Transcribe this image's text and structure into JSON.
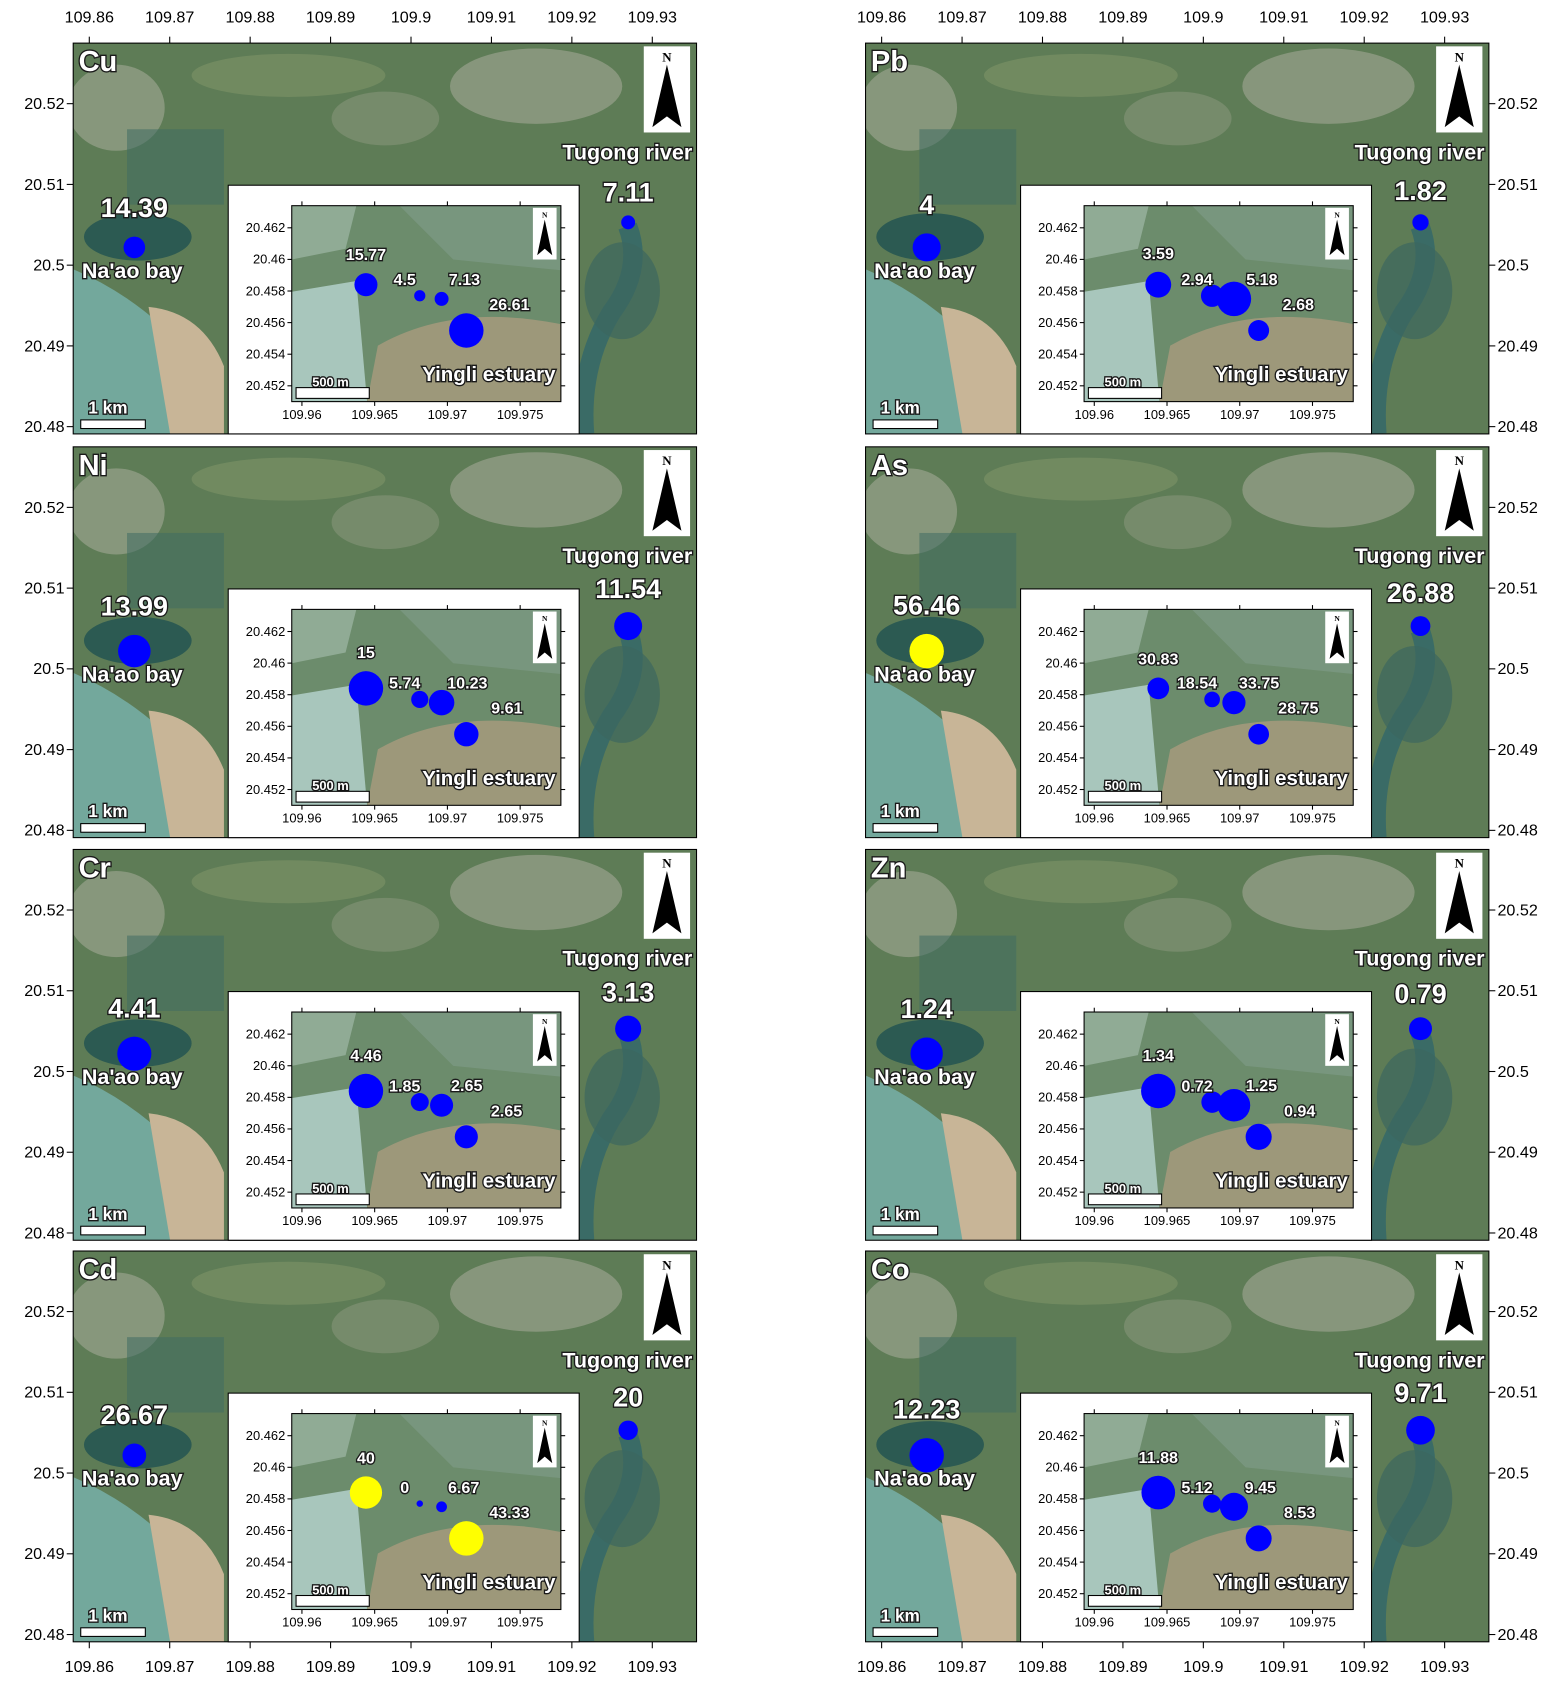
{
  "map": {
    "xlim": [
      109.858,
      109.9355
    ],
    "ylim": [
      20.4791,
      20.5275
    ],
    "xticks": [
      109.86,
      109.87,
      109.88,
      109.89,
      109.9,
      109.91,
      109.92,
      109.93
    ],
    "yticks": [
      20.48,
      20.49,
      20.5,
      20.51,
      20.52
    ],
    "sites": [
      {
        "label": "Na'ao bay",
        "lon": 109.8656,
        "lat": 20.5022
      },
      {
        "label": "Tugong river",
        "lon": 109.927,
        "lat": 20.5053
      }
    ],
    "scale_bar": "1 km",
    "north": "N"
  },
  "inset": {
    "xlim": [
      109.9593,
      109.9778
    ],
    "ylim": [
      20.451,
      20.4634
    ],
    "xticks": [
      109.96,
      109.965,
      109.97,
      109.975
    ],
    "yticks": [
      20.452,
      20.454,
      20.456,
      20.458,
      20.46,
      20.462
    ],
    "label": "Yingli estuary",
    "sites": [
      {
        "lon": 109.9644,
        "lat": 20.4584
      },
      {
        "lon": 109.9681,
        "lat": 20.4577
      },
      {
        "lon": 109.9696,
        "lat": 20.4575
      },
      {
        "lon": 109.9713,
        "lat": 20.4555
      }
    ],
    "scale_bar": "500 m",
    "north": "N"
  },
  "panels": [
    {
      "element": "Cu",
      "map_values": [
        14.39,
        7.11
      ],
      "map_colors": [
        "#0000ff",
        "#0000ff"
      ],
      "inset_values": [
        15.77,
        4.5,
        7.13,
        26.61
      ],
      "inset_colors": [
        "#0000ff",
        "#0000ff",
        "#0000ff",
        "#0000ff"
      ]
    },
    {
      "element": "Pb",
      "map_values": [
        4,
        1.82
      ],
      "map_colors": [
        "#0000ff",
        "#0000ff"
      ],
      "inset_values": [
        3.59,
        2.94,
        5.18,
        2.68
      ],
      "inset_colors": [
        "#0000ff",
        "#0000ff",
        "#0000ff",
        "#0000ff"
      ]
    },
    {
      "element": "Ni",
      "map_values": [
        13.99,
        11.54
      ],
      "map_colors": [
        "#0000ff",
        "#0000ff"
      ],
      "inset_values": [
        15,
        5.74,
        10.23,
        9.61
      ],
      "inset_colors": [
        "#0000ff",
        "#0000ff",
        "#0000ff",
        "#0000ff"
      ]
    },
    {
      "element": "As",
      "map_values": [
        56.46,
        26.88
      ],
      "map_colors": [
        "#ffff00",
        "#0000ff"
      ],
      "inset_values": [
        30.83,
        18.54,
        33.75,
        28.75
      ],
      "inset_colors": [
        "#0000ff",
        "#0000ff",
        "#0000ff",
        "#0000ff"
      ]
    },
    {
      "element": "Cr",
      "map_values": [
        4.41,
        3.13
      ],
      "map_colors": [
        "#0000ff",
        "#0000ff"
      ],
      "inset_values": [
        4.46,
        1.85,
        2.65,
        2.65
      ],
      "inset_colors": [
        "#0000ff",
        "#0000ff",
        "#0000ff",
        "#0000ff"
      ]
    },
    {
      "element": "Zn",
      "map_values": [
        1.24,
        0.79
      ],
      "map_colors": [
        "#0000ff",
        "#0000ff"
      ],
      "inset_values": [
        1.34,
        0.72,
        1.25,
        0.94
      ],
      "inset_colors": [
        "#0000ff",
        "#0000ff",
        "#0000ff",
        "#0000ff"
      ]
    },
    {
      "element": "Cd",
      "map_values": [
        26.67,
        20
      ],
      "map_colors": [
        "#0000ff",
        "#0000ff"
      ],
      "inset_values": [
        40,
        0,
        6.67,
        43.33
      ],
      "inset_colors": [
        "#ffff00",
        "#0000ff",
        "#0000ff",
        "#ffff00"
      ]
    },
    {
      "element": "Co",
      "map_values": [
        12.23,
        9.71
      ],
      "map_colors": [
        "#0000ff",
        "#0000ff"
      ],
      "inset_values": [
        11.88,
        5.12,
        9.45,
        8.53
      ],
      "inset_colors": [
        "#0000ff",
        "#0000ff",
        "#0000ff",
        "#0000ff"
      ]
    }
  ]
}
